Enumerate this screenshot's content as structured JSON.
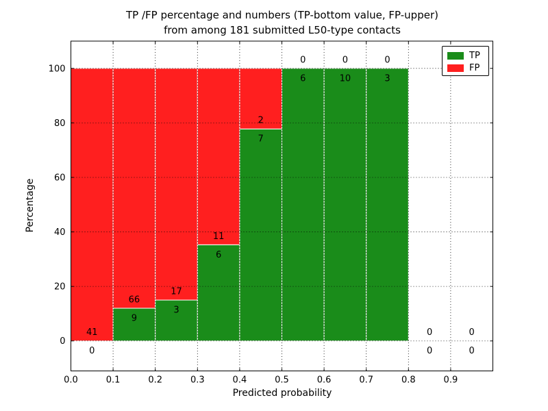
{
  "chart_data": {
    "type": "bar",
    "stacked": true,
    "title_line1": "TP /FP percentage and numbers (TP-bottom value, FP-upper)",
    "title_line2": "from among 181 submitted L50-type contacts",
    "xlabel": "Predicted probability",
    "ylabel": "Percentage",
    "total_submitted_contacts": 181,
    "xlim": [
      0,
      1
    ],
    "ylim": [
      -11,
      110
    ],
    "grid": true,
    "grid_style": "dotted",
    "legend_position": "upper right",
    "colors": {
      "tp": "#1a8c1a",
      "fp": "#ff1f1f"
    },
    "legend": [
      {
        "label": "TP",
        "series": "tp"
      },
      {
        "label": "FP",
        "series": "fp"
      }
    ],
    "xticks": {
      "values": [
        0,
        0.1,
        0.2,
        0.3,
        0.4,
        0.5,
        0.6,
        0.7,
        0.8,
        0.9
      ],
      "labels": [
        "0.0",
        "0.1",
        "0.2",
        "0.3",
        "0.4",
        "0.5",
        "0.6",
        "0.7",
        "0.8",
        "0.9"
      ]
    },
    "yticks": {
      "values": [
        0,
        20,
        40,
        60,
        80,
        100
      ],
      "labels": [
        "0",
        "20",
        "40",
        "60",
        "80",
        "100"
      ]
    },
    "bins": [
      {
        "x0": 0.0,
        "x1": 0.1,
        "tp": 0,
        "fp": 41,
        "tp_pct": 0,
        "fp_pct": 100
      },
      {
        "x0": 0.1,
        "x1": 0.2,
        "tp": 9,
        "fp": 66,
        "tp_pct": 12,
        "fp_pct": 88
      },
      {
        "x0": 0.2,
        "x1": 0.3,
        "tp": 3,
        "fp": 17,
        "tp_pct": 15,
        "fp_pct": 85
      },
      {
        "x0": 0.3,
        "x1": 0.4,
        "tp": 6,
        "fp": 11,
        "tp_pct": 35.29,
        "fp_pct": 64.71
      },
      {
        "x0": 0.4,
        "x1": 0.5,
        "tp": 7,
        "fp": 2,
        "tp_pct": 77.78,
        "fp_pct": 22.22
      },
      {
        "x0": 0.5,
        "x1": 0.6,
        "tp": 6,
        "fp": 0,
        "tp_pct": 100,
        "fp_pct": 0
      },
      {
        "x0": 0.6,
        "x1": 0.7,
        "tp": 10,
        "fp": 0,
        "tp_pct": 100,
        "fp_pct": 0
      },
      {
        "x0": 0.7,
        "x1": 0.8,
        "tp": 3,
        "fp": 0,
        "tp_pct": 100,
        "fp_pct": 0
      },
      {
        "x0": 0.8,
        "x1": 0.9,
        "tp": 0,
        "fp": 0,
        "tp_pct": 0,
        "fp_pct": 0
      },
      {
        "x0": 0.9,
        "x1": 1.0,
        "tp": 0,
        "fp": 0,
        "tp_pct": 0,
        "fp_pct": 0
      }
    ]
  }
}
